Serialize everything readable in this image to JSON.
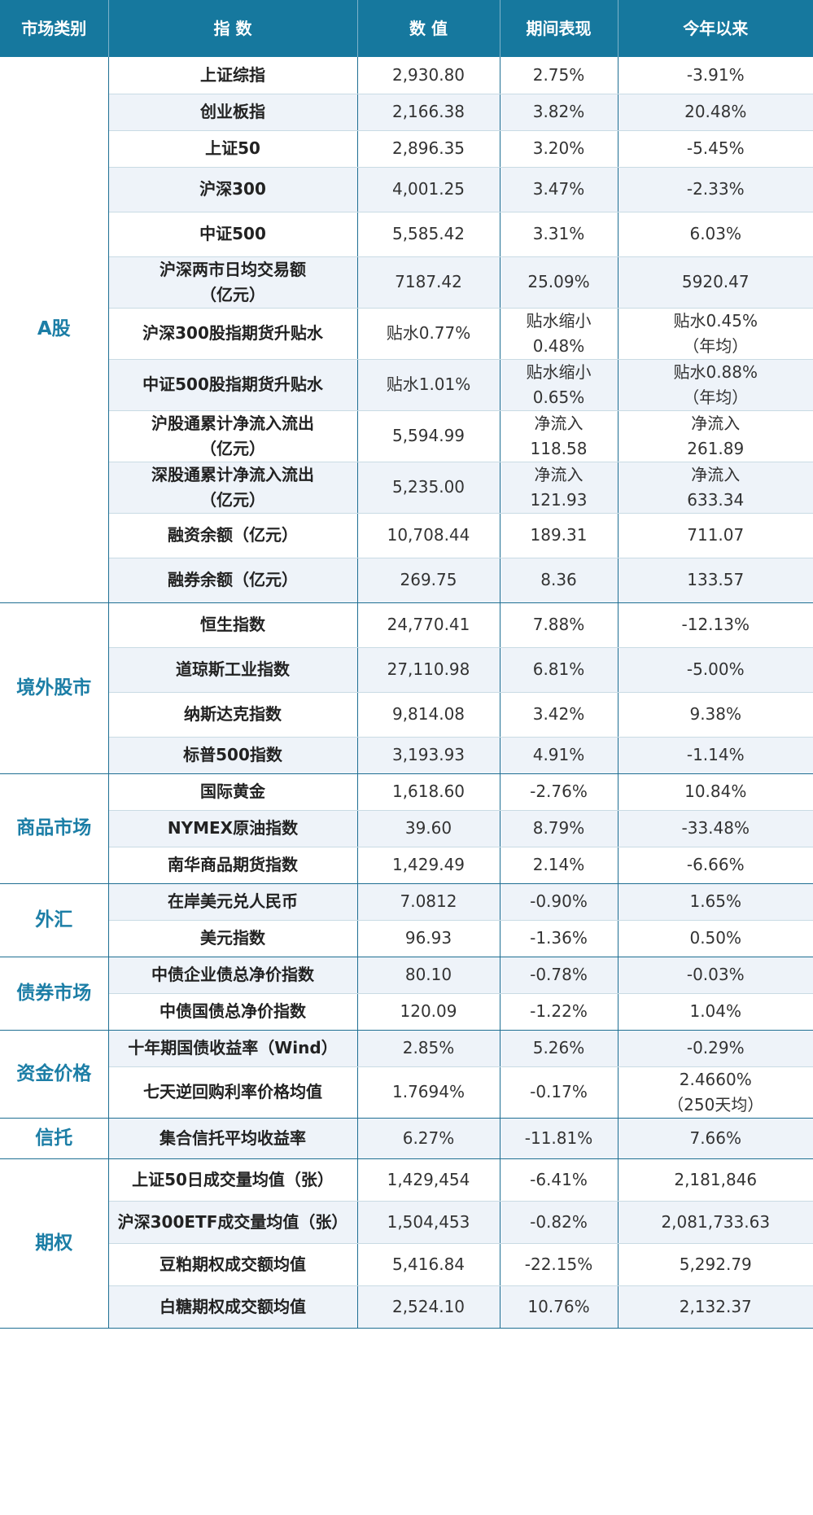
{
  "header": [
    "市场类别",
    "指 数",
    "数 值",
    "期间表现",
    "今年以来"
  ],
  "groups": [
    {
      "category": "A股",
      "rows": [
        {
          "name": "上证综指",
          "value": "2,930.80",
          "period": "2.75%",
          "ytd": "-3.91%"
        },
        {
          "name": "创业板指",
          "value": "2,166.38",
          "period": "3.82%",
          "ytd": "20.48%"
        },
        {
          "name": "上证50",
          "value": "2,896.35",
          "period": "3.20%",
          "ytd": "-5.45%"
        },
        {
          "name": "沪深300",
          "value": "4,001.25",
          "period": "3.47%",
          "ytd": "-2.33%"
        },
        {
          "name": "中证500",
          "value": "5,585.42",
          "period": "3.31%",
          "ytd": "6.03%"
        },
        {
          "name": "沪深两市日均交易额\n（亿元）",
          "value": "7187.42",
          "period": "25.09%",
          "ytd": "5920.47"
        },
        {
          "name": "沪深300股指期货升贴水",
          "value": "贴水0.77%",
          "period": "贴水缩小\n0.48%",
          "ytd": "贴水0.45%\n（年均）"
        },
        {
          "name": "中证500股指期货升贴水",
          "value": "贴水1.01%",
          "period": "贴水缩小\n0.65%",
          "ytd": "贴水0.88%\n（年均）"
        },
        {
          "name": "沪股通累计净流入流出\n（亿元）",
          "value": "5,594.99",
          "period": "净流入\n118.58",
          "ytd": "净流入\n261.89"
        },
        {
          "name": "深股通累计净流入流出\n（亿元）",
          "value": "5,235.00",
          "period": "净流入\n121.93",
          "ytd": "净流入\n633.34"
        },
        {
          "name": "融资余额（亿元）",
          "value": "10,708.44",
          "period": "189.31",
          "ytd": "711.07"
        },
        {
          "name": "融券余额（亿元）",
          "value": "269.75",
          "period": "8.36",
          "ytd": "133.57"
        }
      ]
    },
    {
      "category": "境外股市",
      "rows": [
        {
          "name": "恒生指数",
          "value": "24,770.41",
          "period": "7.88%",
          "ytd": "-12.13%"
        },
        {
          "name": "道琼斯工业指数",
          "value": "27,110.98",
          "period": "6.81%",
          "ytd": "-5.00%"
        },
        {
          "name": "纳斯达克指数",
          "value": "9,814.08",
          "period": "3.42%",
          "ytd": "9.38%"
        },
        {
          "name": "标普500指数",
          "value": "3,193.93",
          "period": "4.91%",
          "ytd": "-1.14%"
        }
      ]
    },
    {
      "category": "商品市场",
      "rows": [
        {
          "name": "国际黄金",
          "value": "1,618.60",
          "period": "-2.76%",
          "ytd": "10.84%"
        },
        {
          "name": "NYMEX原油指数",
          "value": "39.60",
          "period": "8.79%",
          "ytd": "-33.48%"
        },
        {
          "name": "南华商品期货指数",
          "value": "1,429.49",
          "period": "2.14%",
          "ytd": "-6.66%"
        }
      ]
    },
    {
      "category": "外汇",
      "rows": [
        {
          "name": "在岸美元兑人民币",
          "value": "7.0812",
          "period": "-0.90%",
          "ytd": "1.65%"
        },
        {
          "name": "美元指数",
          "value": "96.93",
          "period": "-1.36%",
          "ytd": "0.50%"
        }
      ]
    },
    {
      "category": "债券市场",
      "rows": [
        {
          "name": "中债企业债总净价指数",
          "value": "80.10",
          "period": "-0.78%",
          "ytd": "-0.03%"
        },
        {
          "name": "中债国债总净价指数",
          "value": "120.09",
          "period": "-1.22%",
          "ytd": "1.04%"
        }
      ]
    },
    {
      "category": "资金价格",
      "rows": [
        {
          "name": "十年期国债收益率（Wind）",
          "value": "2.85%",
          "period": "5.26%",
          "ytd": "-0.29%"
        },
        {
          "name": "七天逆回购利率价格均值",
          "value": "1.7694%",
          "period": "-0.17%",
          "ytd": "2.4660%\n（250天均）"
        }
      ]
    },
    {
      "category": "信托",
      "rows": [
        {
          "name": "集合信托平均收益率",
          "value": "6.27%",
          "period": "-11.81%",
          "ytd": "7.66%"
        }
      ]
    },
    {
      "category": "期权",
      "rows": [
        {
          "name": "上证50日成交量均值（张）",
          "value": "1,429,454",
          "period": "-6.41%",
          "ytd": "2,181,846"
        },
        {
          "name": "沪深300ETF成交量均值（张）",
          "value": "1,504,453",
          "period": "-0.82%",
          "ytd": "2,081,733.63"
        },
        {
          "name": "豆粕期权成交额均值",
          "value": "5,416.84",
          "period": "-22.15%",
          "ytd": "5,292.79"
        },
        {
          "name": "白糖期权成交额均值",
          "value": "2,524.10",
          "period": "10.76%",
          "ytd": "2,132.37"
        }
      ]
    }
  ]
}
